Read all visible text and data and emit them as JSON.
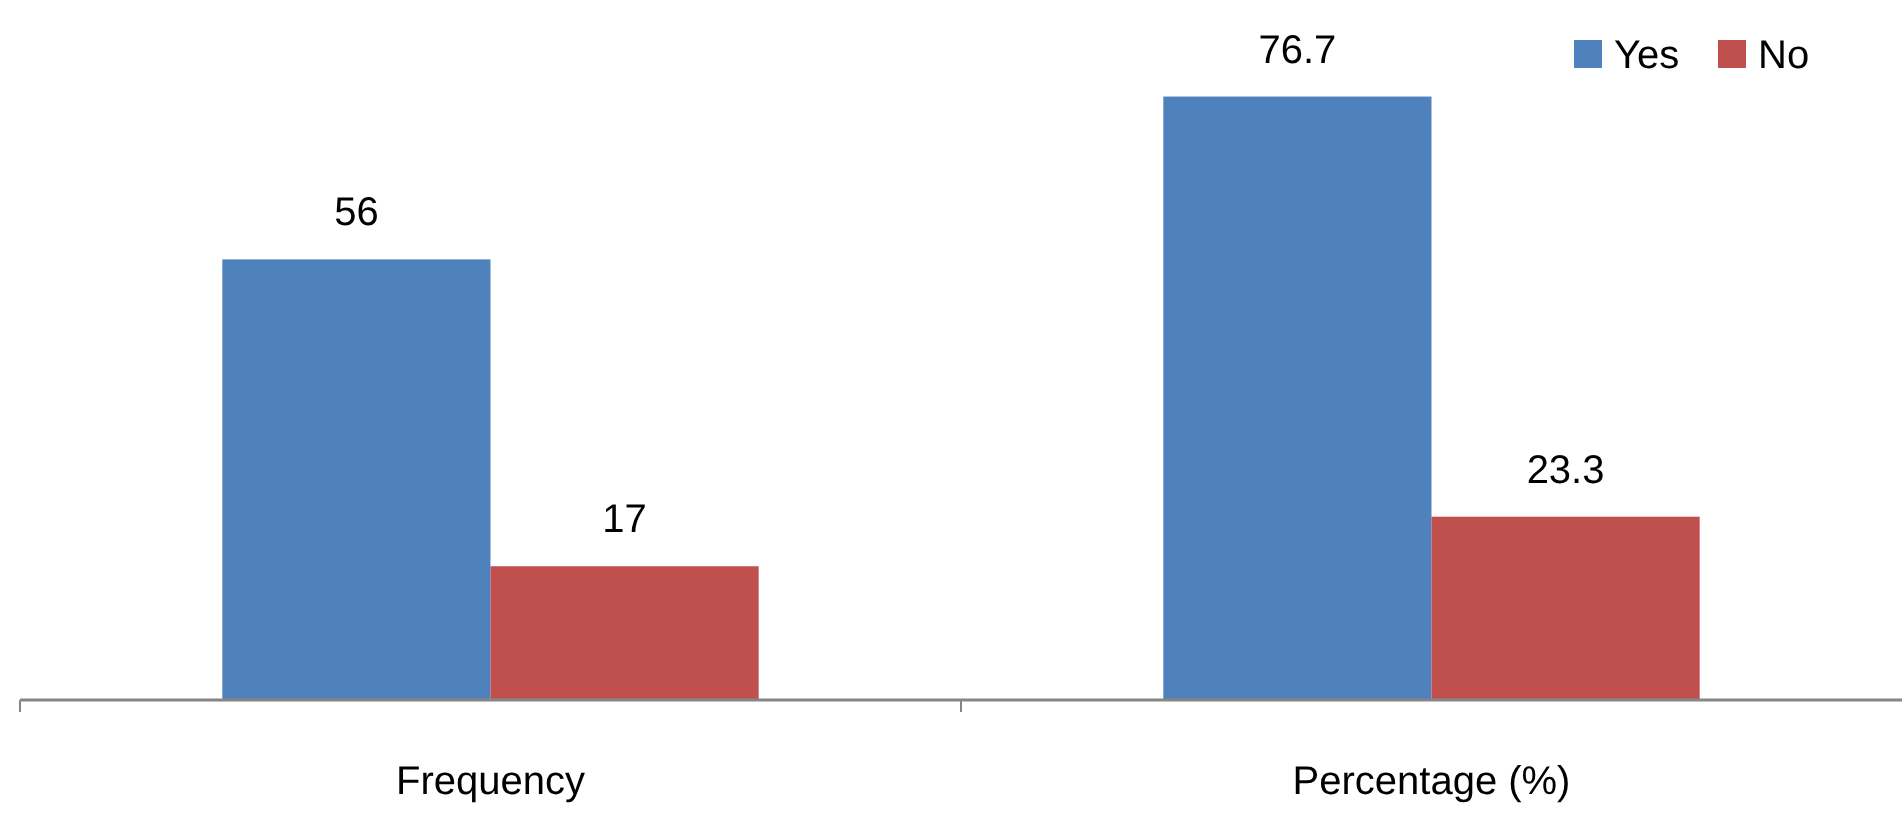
{
  "chart_data": {
    "type": "bar",
    "categories": [
      "Frequency",
      "Percentage (%)"
    ],
    "series": [
      {
        "name": "Yes",
        "color": "#4f81bd",
        "values": [
          56,
          76.7
        ]
      },
      {
        "name": "No",
        "color": "#c0504d",
        "values": [
          17,
          23.3
        ]
      }
    ],
    "data_labels": true,
    "legend": "top right"
  }
}
